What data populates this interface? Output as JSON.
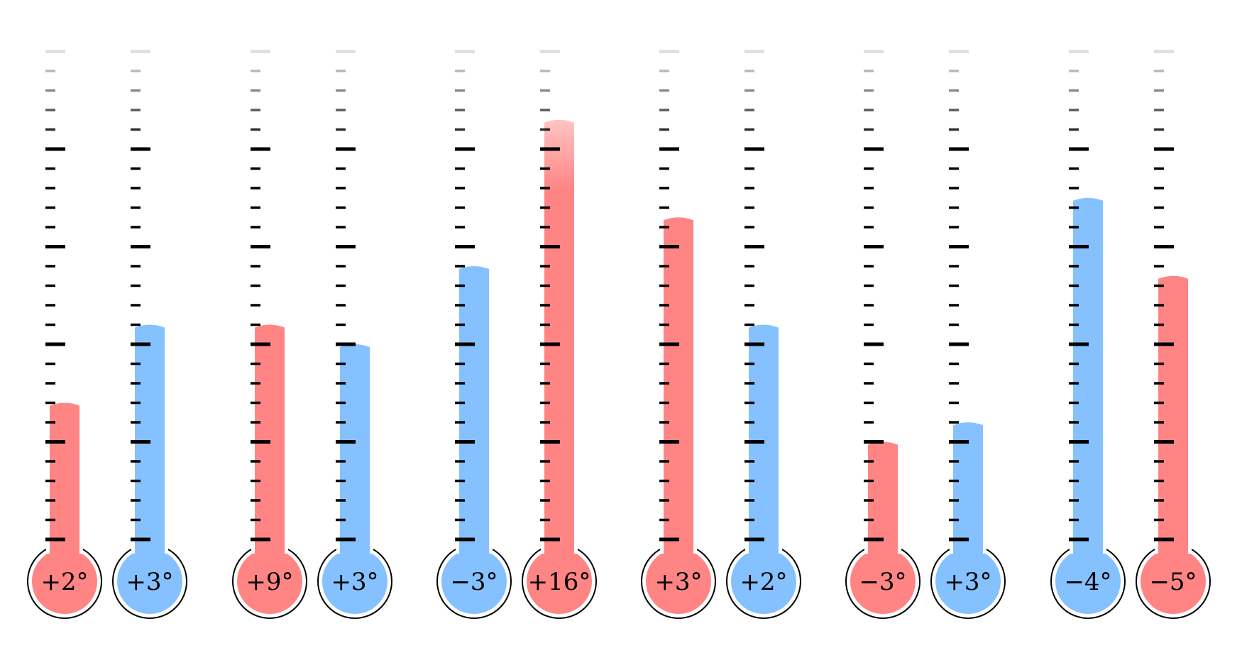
{
  "colors": {
    "warm": "#ff8585",
    "cold": "#85c1ff",
    "outline": "#000000",
    "tick": "#000000"
  },
  "scale": {
    "units_per_minor_tick": 1,
    "minor_ticks": 25,
    "major_every": 5
  },
  "thermometers": [
    {
      "label": "+2°",
      "color": "warm",
      "level": 7
    },
    {
      "label": "+3°",
      "color": "cold",
      "level": 11
    },
    {
      "label": "+9°",
      "color": "warm",
      "level": 11
    },
    {
      "label": "+3°",
      "color": "cold",
      "level": 10
    },
    {
      "label": "−3°",
      "color": "cold",
      "level": 14
    },
    {
      "label": "+16°",
      "color": "warm",
      "level": 21.5
    },
    {
      "label": "+3°",
      "color": "warm",
      "level": 16.5
    },
    {
      "label": "+2°",
      "color": "cold",
      "level": 11
    },
    {
      "label": "−3°",
      "color": "warm",
      "level": 5
    },
    {
      "label": "+3°",
      "color": "cold",
      "level": 6
    },
    {
      "label": "−4°",
      "color": "cold",
      "level": 17.5
    },
    {
      "label": "−5°",
      "color": "warm",
      "level": 13.5
    }
  ]
}
